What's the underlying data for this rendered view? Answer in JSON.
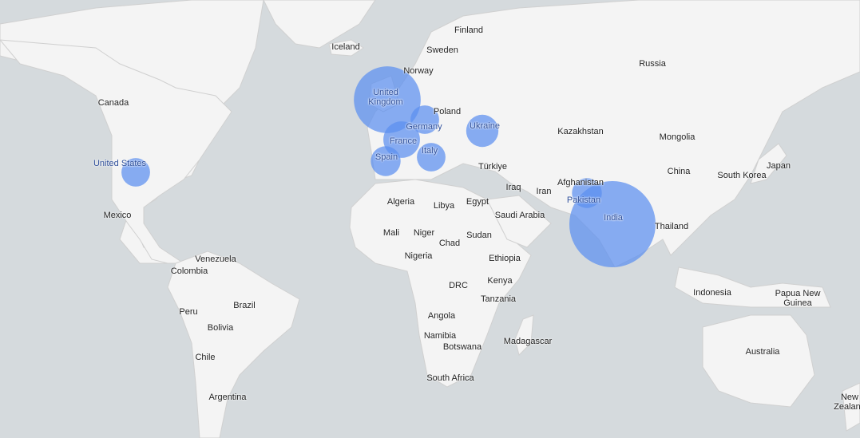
{
  "bubble_color": "#5b8ff0",
  "land_color": "#f4f4f4",
  "water_color": "#d5dadd",
  "bubbles": [
    {
      "country": "India",
      "relative_magnitude": 100
    },
    {
      "country": "United Kingdom",
      "relative_magnitude": 60
    },
    {
      "country": "France",
      "relative_magnitude": 18
    },
    {
      "country": "Ukraine",
      "relative_magnitude": 14
    },
    {
      "country": "Spain",
      "relative_magnitude": 12
    },
    {
      "country": "Pakistan",
      "relative_magnitude": 12
    },
    {
      "country": "Germany",
      "relative_magnitude": 11
    },
    {
      "country": "Italy",
      "relative_magnitude": 11
    },
    {
      "country": "United States",
      "relative_magnitude": 11
    }
  ],
  "labels": [
    "Finland",
    "Iceland",
    "Sweden",
    "Russia",
    "Norway",
    "United Kingdom",
    "Canada",
    "Poland",
    "Germany",
    "Ukraine",
    "Kazakhstan",
    "Mongolia",
    "France",
    "United States",
    "Italy",
    "Spain",
    "Türkiye",
    "China",
    "South Korea",
    "Japan",
    "Afghanistan",
    "Iraq",
    "Iran",
    "Pakistan",
    "Algeria",
    "Libya",
    "Egypt",
    "Saudi Arabia",
    "India",
    "Mexico",
    "Thailand",
    "Mali",
    "Niger",
    "Sudan",
    "Chad",
    "Nigeria",
    "Ethiopia",
    "Venezuela",
    "Colombia",
    "DRC",
    "Kenya",
    "Indonesia",
    "Papua New Guinea",
    "Tanzania",
    "Brazil",
    "Peru",
    "Bolivia",
    "Angola",
    "Namibia",
    "Madagascar",
    "Botswana",
    "Australia",
    "Chile",
    "South Africa",
    "Argentina",
    "New Zealand"
  ]
}
